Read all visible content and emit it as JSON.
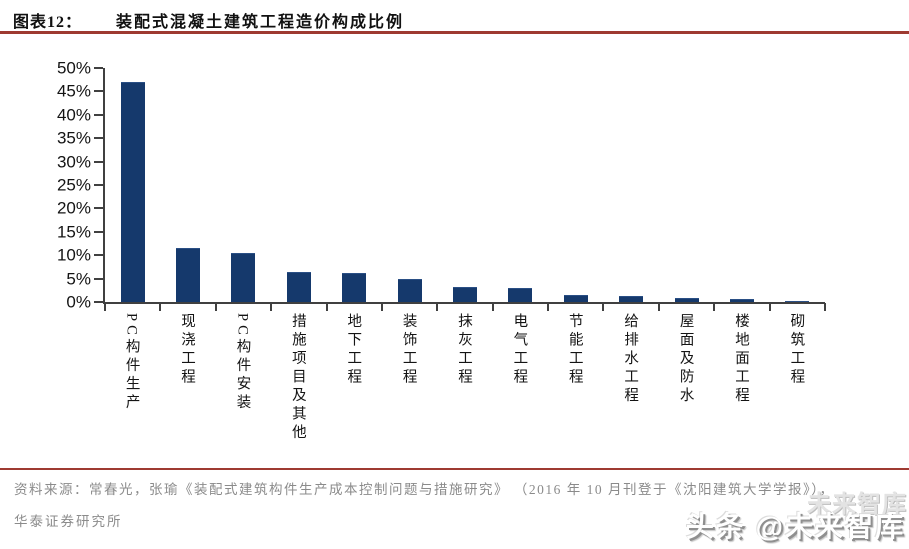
{
  "header": {
    "figure_label": "图表12：",
    "title": "装配式混凝土建筑工程造价构成比例"
  },
  "chart_data": {
    "type": "bar",
    "title": "装配式混凝土建筑工程造价构成比例",
    "categories": [
      "PC构件生产",
      "现浇工程",
      "PC构件安装",
      "措施项目及其他",
      "地下工程",
      "装饰工程",
      "抹灰工程",
      "电气工程",
      "节能工程",
      "给排水工程",
      "屋面及防水",
      "楼地面工程",
      "砌筑工程"
    ],
    "values": [
      46.9,
      11.4,
      10.3,
      6.3,
      6.0,
      4.8,
      3.1,
      2.8,
      1.2,
      1.0,
      0.7,
      0.5,
      0.1
    ],
    "xlabel": "",
    "ylabel": "",
    "ylim": [
      0,
      50
    ],
    "ytick_step": 5,
    "ytick_labels": [
      "0%",
      "5%",
      "10%",
      "15%",
      "20%",
      "25%",
      "30%",
      "35%",
      "40%",
      "45%",
      "50%"
    ],
    "grid": false,
    "legend": null,
    "bar_color": "#15396c"
  },
  "footer": {
    "source_line1": "资料来源：常春光，张瑜《装配式建筑构件生产成本控制问题与措施研究》 （2016 年 10 月刊登于《沈阳建筑大学学报》），",
    "source_line2": "华泰证券研究所"
  },
  "watermark": {
    "ghost_text": "未来智库",
    "main_text": "头条 @未来智库"
  },
  "colors": {
    "accent_red": "#9e3a31",
    "bar_navy": "#15396c",
    "axis_gray": "#404040",
    "footer_gray": "#8b8b8b"
  }
}
